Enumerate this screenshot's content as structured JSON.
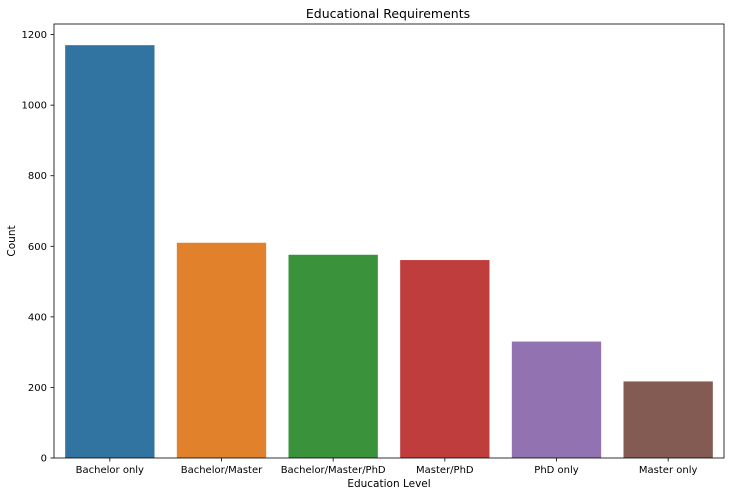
{
  "chart_data": {
    "type": "bar",
    "title": "Educational Requirements",
    "xlabel": "Education Level",
    "ylabel": "Count",
    "categories": [
      "Bachelor only",
      "Bachelor/Master",
      "Bachelor/Master/PhD",
      "Master/PhD",
      "PhD only",
      "Master only"
    ],
    "values": [
      1170,
      610,
      576,
      561,
      330,
      217
    ],
    "colors": [
      "#3274a1",
      "#e1812c",
      "#3a923a",
      "#c03d3e",
      "#9372b2",
      "#845b53"
    ],
    "ylim": [
      0,
      1230
    ],
    "yticks": [
      0,
      200,
      400,
      600,
      800,
      1000,
      1200
    ],
    "grid": false,
    "legend": "none"
  }
}
